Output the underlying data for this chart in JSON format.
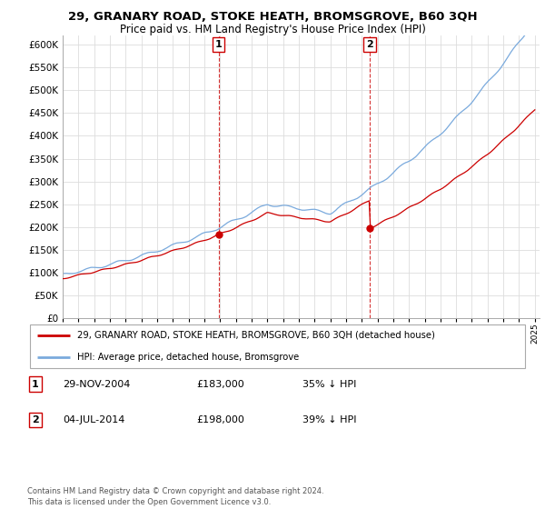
{
  "title": "29, GRANARY ROAD, STOKE HEATH, BROMSGROVE, B60 3QH",
  "subtitle": "Price paid vs. HM Land Registry's House Price Index (HPI)",
  "ylabel_ticks": [
    "£0",
    "£50K",
    "£100K",
    "£150K",
    "£200K",
    "£250K",
    "£300K",
    "£350K",
    "£400K",
    "£450K",
    "£500K",
    "£550K",
    "£600K"
  ],
  "ylim": [
    0,
    620000
  ],
  "yticks": [
    0,
    50000,
    100000,
    150000,
    200000,
    250000,
    300000,
    350000,
    400000,
    450000,
    500000,
    550000,
    600000
  ],
  "purchase1_year": 2004.916,
  "purchase1_price": 183000,
  "purchase2_year": 2014.5,
  "purchase2_price": 198000,
  "red_line_color": "#cc0000",
  "blue_line_color": "#7aaadd",
  "grid_color": "#dddddd",
  "legend_entry1": "29, GRANARY ROAD, STOKE HEATH, BROMSGROVE, B60 3QH (detached house)",
  "legend_entry2": "HPI: Average price, detached house, Bromsgrove",
  "table_row1": [
    "1",
    "29-NOV-2004",
    "£183,000",
    "35% ↓ HPI"
  ],
  "table_row2": [
    "2",
    "04-JUL-2014",
    "£198,000",
    "39% ↓ HPI"
  ],
  "footer": "Contains HM Land Registry data © Crown copyright and database right 2024.\nThis data is licensed under the Open Government Licence v3.0.",
  "background_color": "#ffffff"
}
